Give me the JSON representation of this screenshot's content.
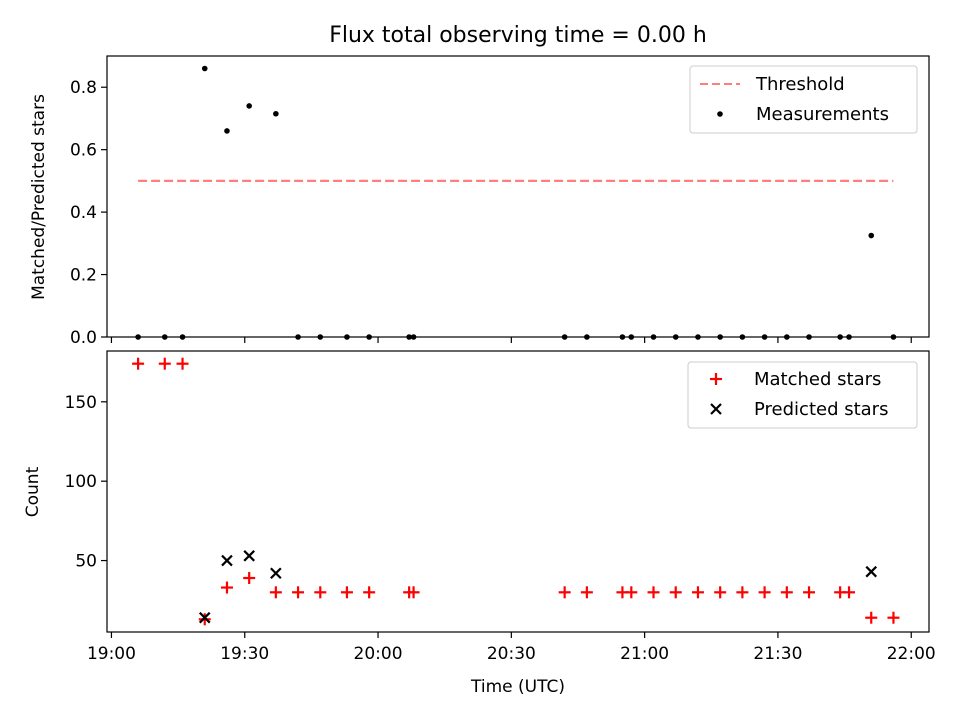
{
  "title": "Flux total observing time = 0.00 h",
  "chart_data": [
    {
      "type": "scatter",
      "ylabel": "Matched/Predicted stars",
      "xlim": [
        "18:59",
        "22:04"
      ],
      "ylim": [
        0,
        0.9
      ],
      "yticks": [
        "0.0",
        "0.2",
        "0.4",
        "0.6",
        "0.8"
      ],
      "legend": {
        "placement": "top-right",
        "threshold_label": "Threshold",
        "measurements_label": "Measurements"
      },
      "threshold": {
        "value": 0.5,
        "x_start": "19:06",
        "x_end": "21:56",
        "color": "#ff7f7f"
      },
      "measurements": {
        "color": "#000000",
        "x": [
          "19:06",
          "19:12",
          "19:16",
          "19:21",
          "19:26",
          "19:31",
          "19:37",
          "19:42",
          "19:47",
          "19:53",
          "19:58",
          "20:07",
          "20:08",
          "20:42",
          "20:47",
          "20:55",
          "20:57",
          "21:02",
          "21:07",
          "21:12",
          "21:17",
          "21:22",
          "21:27",
          "21:32",
          "21:37",
          "21:44",
          "21:46",
          "21:51",
          "21:56"
        ],
        "y": [
          0,
          0,
          0,
          0.86,
          0.66,
          0.74,
          0.715,
          0,
          0,
          0,
          0,
          0,
          0,
          0,
          0,
          0,
          0,
          0,
          0,
          0,
          0,
          0,
          0,
          0,
          0,
          0,
          0,
          0.325,
          0
        ]
      }
    },
    {
      "type": "scatter",
      "xlabel": "Time (UTC)",
      "ylabel": "Count",
      "xlim": [
        "18:59",
        "22:04"
      ],
      "ylim": [
        5,
        182
      ],
      "yticks": [
        "50",
        "100",
        "150"
      ],
      "xticks": [
        "19:00",
        "19:30",
        "20:00",
        "20:30",
        "21:00",
        "21:30",
        "22:00"
      ],
      "legend": {
        "placement": "top-right"
      },
      "series": [
        {
          "name": "Matched stars",
          "marker": "plus",
          "color": "#ff0000",
          "x": [
            "19:06",
            "19:12",
            "19:16",
            "19:21",
            "19:26",
            "19:31",
            "19:37",
            "19:42",
            "19:47",
            "19:53",
            "19:58",
            "20:07",
            "20:08",
            "20:42",
            "20:47",
            "20:55",
            "20:57",
            "21:02",
            "21:07",
            "21:12",
            "21:17",
            "21:22",
            "21:27",
            "21:32",
            "21:37",
            "21:44",
            "21:46",
            "21:51",
            "21:56"
          ],
          "y": [
            174,
            174,
            174,
            13,
            33,
            39,
            30,
            30,
            30,
            30,
            30,
            30,
            30,
            30,
            30,
            30,
            30,
            30,
            30,
            30,
            30,
            30,
            30,
            30,
            30,
            30,
            30,
            14,
            14
          ]
        },
        {
          "name": "Predicted stars",
          "marker": "x",
          "color": "#000000",
          "x": [
            "19:21",
            "19:26",
            "19:31",
            "19:37",
            "21:51"
          ],
          "y": [
            14,
            50,
            53,
            42,
            43
          ]
        }
      ]
    }
  ]
}
